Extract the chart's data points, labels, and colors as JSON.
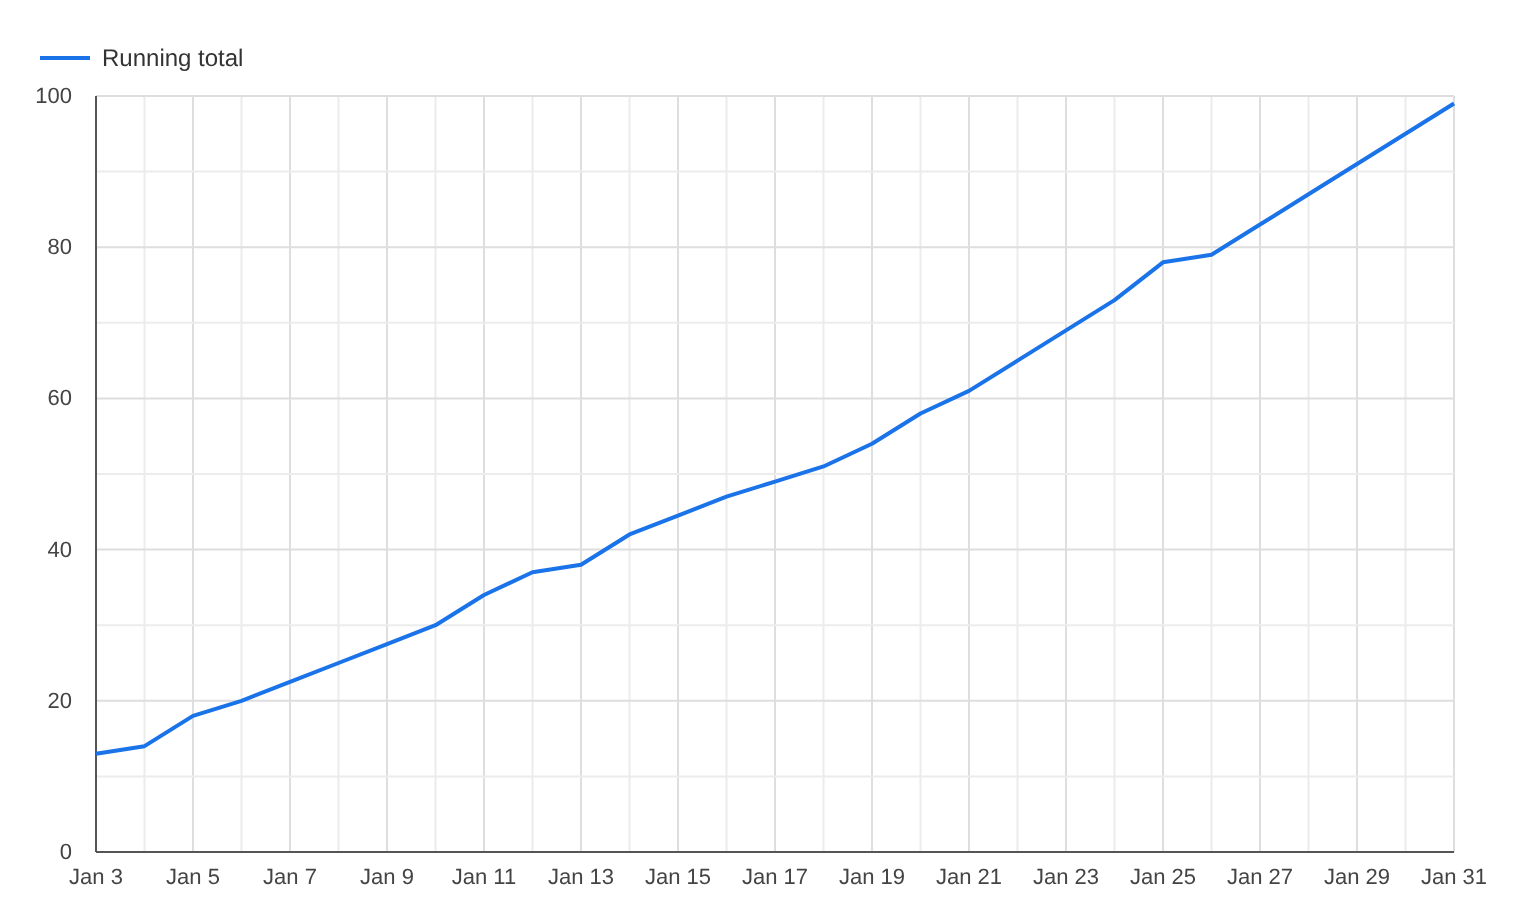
{
  "chart_data": {
    "type": "line",
    "legend": "top left",
    "grid": true,
    "line_style": "solid",
    "marker": "none",
    "x": [
      "--01-03",
      "--01-04",
      "--01-05",
      "--01-06",
      "--01-07",
      "--01-08",
      "--01-09",
      "--01-10",
      "--01-11",
      "--01-12",
      "--01-13",
      "--01-14",
      "--01-15",
      "--01-16",
      "--01-17",
      "--01-18",
      "--01-19",
      "--01-20",
      "--01-21",
      "--01-22",
      "--01-23",
      "--01-24",
      "--01-25",
      "--01-26",
      "--01-27",
      "--01-28",
      "--01-29",
      "--01-30",
      "--01-31"
    ],
    "series": [
      {
        "name": "Running total",
        "color": "#1a73e8",
        "values": [
          13,
          14,
          18,
          20,
          22.5,
          25,
          27.5,
          30,
          34,
          37,
          38,
          42,
          44.5,
          47,
          49,
          51,
          54,
          58,
          61,
          65,
          69,
          73,
          78,
          79,
          83,
          87,
          91,
          95,
          99
        ]
      }
    ],
    "xlim": [
      "--01-03",
      "--01-31"
    ],
    "xticks": [
      {
        "value": "--01-03",
        "label": "Jan 3"
      },
      {
        "value": "--01-04",
        "label": null
      },
      {
        "value": "--01-05",
        "label": "Jan 5"
      },
      {
        "value": "--01-06",
        "label": null
      },
      {
        "value": "--01-07",
        "label": "Jan 7"
      },
      {
        "value": "--01-08",
        "label": null
      },
      {
        "value": "--01-09",
        "label": "Jan 9"
      },
      {
        "value": "--01-10",
        "label": null
      },
      {
        "value": "--01-11",
        "label": "Jan 11"
      },
      {
        "value": "--01-12",
        "label": null
      },
      {
        "value": "--01-13",
        "label": "Jan 13"
      },
      {
        "value": "--01-14",
        "label": null
      },
      {
        "value": "--01-15",
        "label": "Jan 15"
      },
      {
        "value": "--01-16",
        "label": null
      },
      {
        "value": "--01-17",
        "label": "Jan 17"
      },
      {
        "value": "--01-18",
        "label": null
      },
      {
        "value": "--01-19",
        "label": "Jan 19"
      },
      {
        "value": "--01-20",
        "label": null
      },
      {
        "value": "--01-21",
        "label": "Jan 21"
      },
      {
        "value": "--01-22",
        "label": null
      },
      {
        "value": "--01-23",
        "label": "Jan 23"
      },
      {
        "value": "--01-24",
        "label": null
      },
      {
        "value": "--01-25",
        "label": "Jan 25"
      },
      {
        "value": "--01-26",
        "label": null
      },
      {
        "value": "--01-27",
        "label": "Jan 27"
      },
      {
        "value": "--01-28",
        "label": null
      },
      {
        "value": "--01-29",
        "label": "Jan 29"
      },
      {
        "value": "--01-30",
        "label": null
      },
      {
        "value": "--01-31",
        "label": "Jan 31"
      }
    ],
    "ylim": [
      0,
      100
    ],
    "yticks": [
      0,
      {
        "value": 10,
        "label": null
      },
      20,
      {
        "value": 30,
        "label": null
      },
      40,
      {
        "value": 50,
        "label": null
      },
      60,
      {
        "value": 70,
        "label": null
      },
      80,
      {
        "value": 90,
        "label": null
      },
      100
    ]
  }
}
